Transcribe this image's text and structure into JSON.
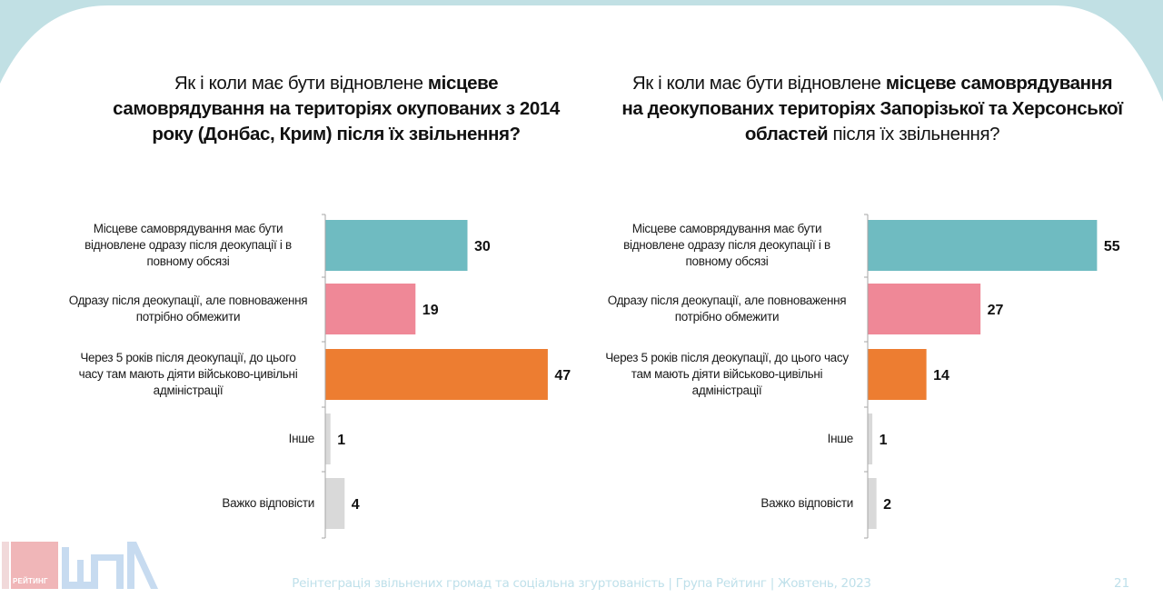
{
  "colors": {
    "background_band": "#c1e0e4",
    "teal": "#6fbbc1",
    "pink": "#ef8897",
    "orange": "#ed7d31",
    "grey": "#d9d9d9",
    "axis": "#a6a6a6",
    "footer": "#bfe0ea",
    "logo_pink": "#f0b6b8",
    "logo_blue": "#c7dbf0"
  },
  "footer": {
    "text": "Реінтеграція звільнених громад та соціальна згуртованість | Група Рейтинг | Жовтень, 2023",
    "page_number": "21"
  },
  "logos": {
    "rating_word": "РЕЙТИНГ",
    "rating_icon": "rating-logo-icon",
    "shpa_icon": "shpa-logo-icon"
  },
  "chart_data": [
    {
      "type": "bar",
      "orientation": "horizontal",
      "title_parts": [
        {
          "text": "Як і коли має бути відновлене ",
          "bold": false
        },
        {
          "text": "місцеве самоврядування на територіях окупованих з 2014 року (Донбас, Крим) після їх звільнення?",
          "bold": true
        }
      ],
      "title_lines": [
        [
          {
            "text": "Як і коли має бути відновлене ",
            "bold": false
          },
          {
            "text": "місцеве",
            "bold": true
          }
        ],
        [
          {
            "text": "самоврядування на територіях окупованих з 2014",
            "bold": true
          }
        ],
        [
          {
            "text": "року (Донбас, Крим) після їх звільнення?",
            "bold": true
          }
        ]
      ],
      "categories": [
        "Місцеве самоврядування має бути відновлене одразу після деокупації і в повному обсязі",
        "Одразу після деокупації, але повноваження потрібно обмежити",
        "Через 5 років після деокупації, до цього часу там мають діяти військово-цивільні адміністрації",
        "Інше",
        "Важко відповісти"
      ],
      "category_lines": [
        [
          "Місцеве самоврядування має бути",
          "відновлене одразу після деокупації і в",
          "повному обсязі"
        ],
        [
          "Одразу після деокупації, але повноваження",
          "потрібно обмежити"
        ],
        [
          "Через 5 років після деокупації, до цього",
          "часу там мають діяти військово-цивільні",
          "адміністрації"
        ],
        [
          "Інше"
        ],
        [
          "Важко відповісти"
        ]
      ],
      "values": [
        30,
        19,
        47,
        1,
        4
      ],
      "data_labels": [
        "30",
        "19",
        "47",
        "1",
        "4"
      ],
      "bar_colors": [
        "#6fbbc1",
        "#ef8897",
        "#ed7d31",
        "#d9d9d9",
        "#d9d9d9"
      ],
      "unit": "%",
      "xlim": [
        0,
        60
      ],
      "grid": false,
      "legend": "none",
      "xlabel": "",
      "ylabel": ""
    },
    {
      "type": "bar",
      "orientation": "horizontal",
      "title_parts": [
        {
          "text": "Як і коли має бути відновлене ",
          "bold": false
        },
        {
          "text": "місцеве самоврядування на деокупованих територіях Запорізької та Херсонської областей",
          "bold": true
        },
        {
          "text": " після їх звільнення?",
          "bold": false
        }
      ],
      "title_lines": [
        [
          {
            "text": "Як і коли має бути відновлене ",
            "bold": false
          },
          {
            "text": "місцеве самоврядування",
            "bold": true
          }
        ],
        [
          {
            "text": "на деокупованих територіях Запорізької та Херсонської",
            "bold": true
          }
        ],
        [
          {
            "text": "областей",
            "bold": true
          },
          {
            "text": " після їх звільнення?",
            "bold": false
          }
        ]
      ],
      "categories": [
        "Місцеве самоврядування має бути відновлене одразу після деокупації і в повному обсязі",
        "Одразу після деокупації, але повноваження потрібно обмежити",
        "Через 5 років після деокупації, до цього часу там мають діяти військово-цивільні адміністрації",
        "Інше",
        "Важко відповісти"
      ],
      "category_lines": [
        [
          "Місцеве самоврядування має бути",
          "відновлене одразу після деокупації і в",
          "повному обсязі"
        ],
        [
          "Одразу після деокупації, але повноваження",
          "потрібно обмежити"
        ],
        [
          "Через 5 років після деокупації, до цього часу",
          "там мають діяти військово-цивільні",
          "адміністрації"
        ],
        [
          "Інше"
        ],
        [
          "Важко відповісти"
        ]
      ],
      "values": [
        55,
        27,
        14,
        1,
        2
      ],
      "data_labels": [
        "55",
        "27",
        "14",
        "1",
        "2"
      ],
      "bar_colors": [
        "#6fbbc1",
        "#ef8897",
        "#ed7d31",
        "#d9d9d9",
        "#d9d9d9"
      ],
      "unit": "%",
      "xlim": [
        0,
        60
      ],
      "grid": false,
      "legend": "none",
      "xlabel": "",
      "ylabel": ""
    }
  ]
}
